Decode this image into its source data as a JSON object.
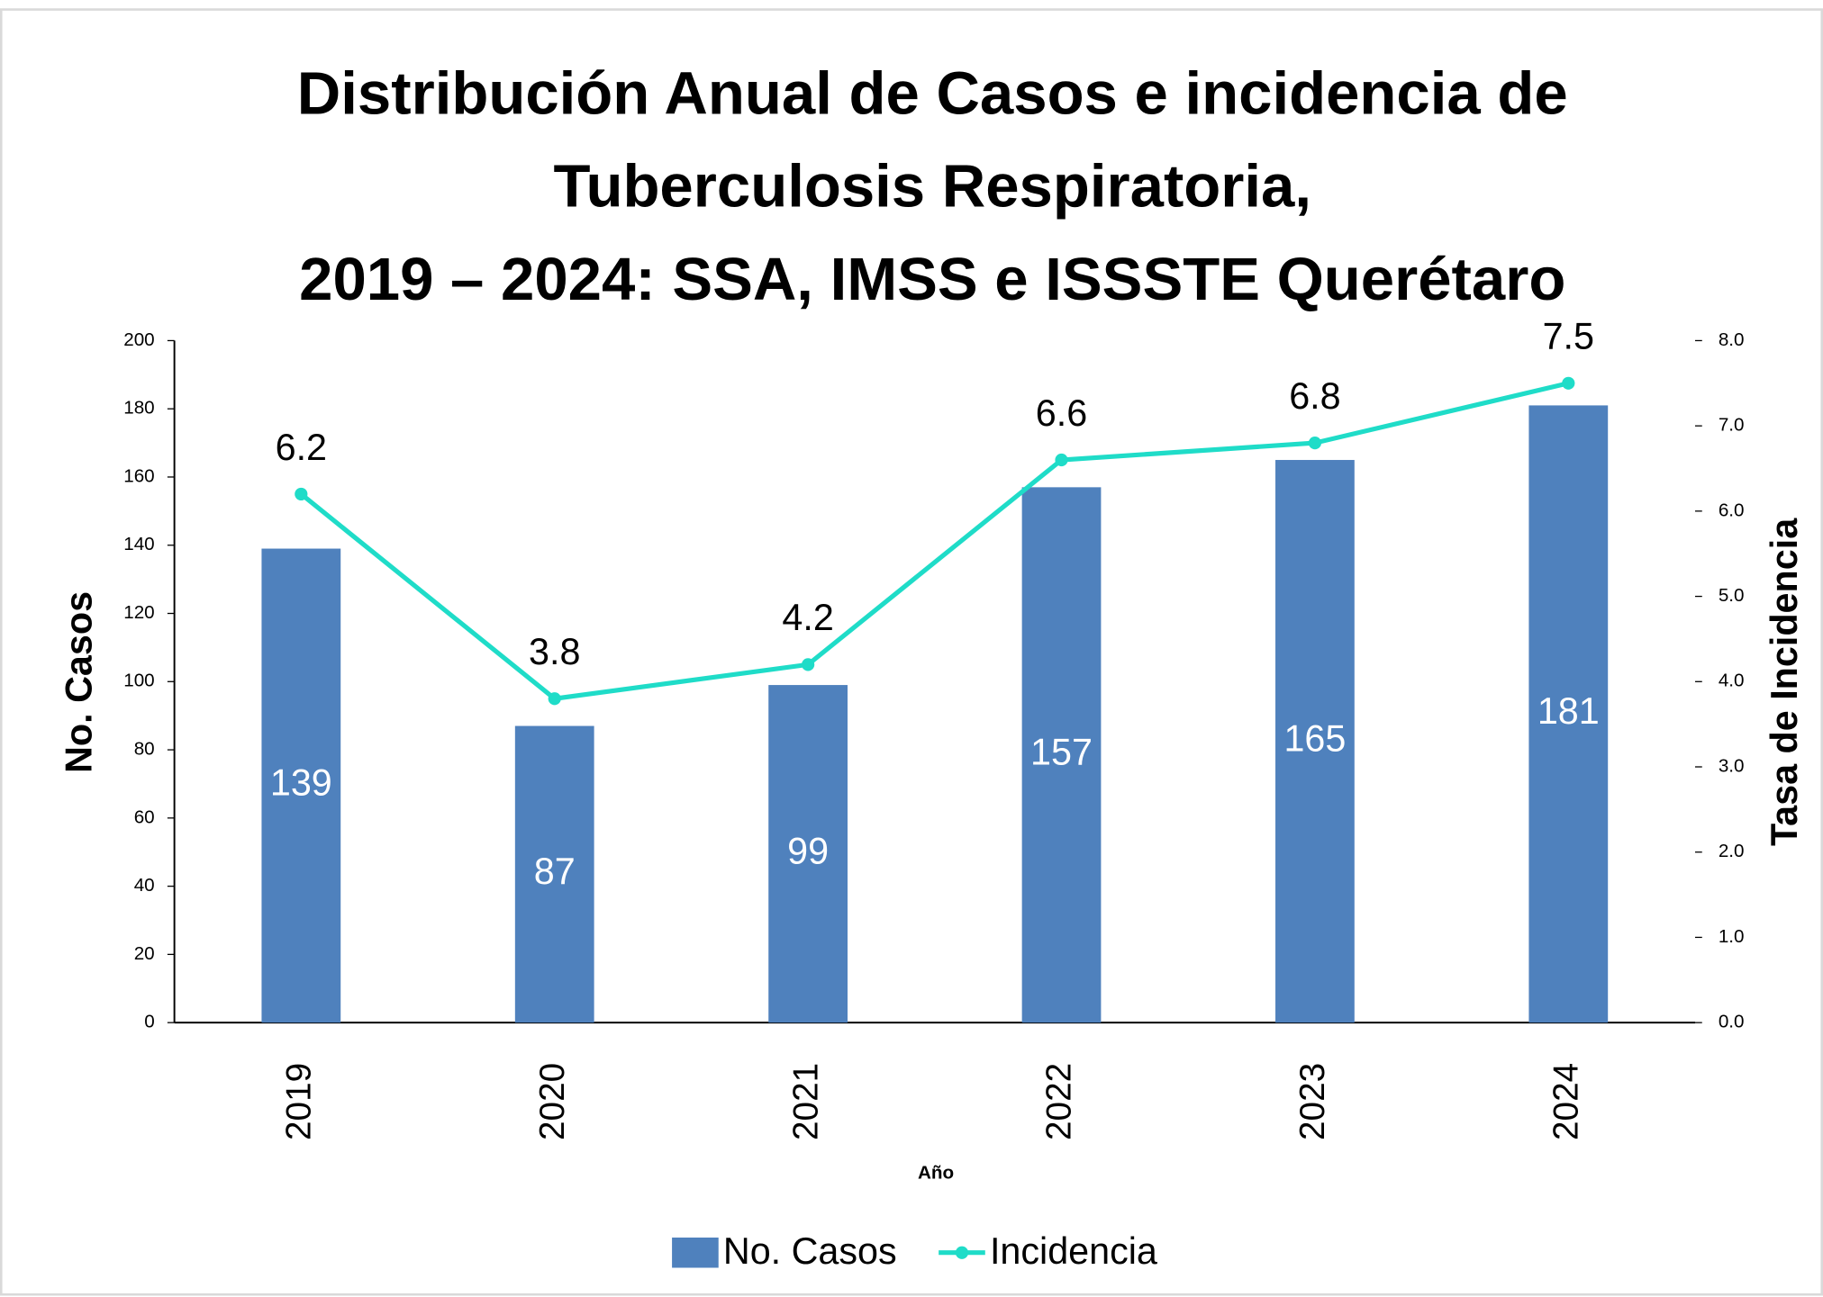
{
  "chart_data": {
    "type": "bar_line",
    "title": [
      "Distribución Anual de Casos e incidencia de",
      "Tuberculosis Respiratoria,",
      "2019 – 2024: SSA, IMSS e ISSSTE Querétaro"
    ],
    "xlabel": "Año",
    "ylabel": "No. Casos",
    "y2label": "Tasa de Incidencia",
    "categories": [
      "2019",
      "2020",
      "2021",
      "2022",
      "2023",
      "2024"
    ],
    "series": [
      {
        "name": "No. Casos",
        "type": "bar",
        "color": "#4f81bd",
        "values": [
          139,
          87,
          99,
          157,
          165,
          181
        ]
      },
      {
        "name": "Incidencia",
        "type": "line",
        "axis": "y2",
        "color": "#1fdcc8",
        "values": [
          6.2,
          3.8,
          4.2,
          6.6,
          6.8,
          7.5
        ]
      }
    ],
    "ylim": [
      0,
      200
    ],
    "yticks": [
      0,
      20,
      40,
      60,
      80,
      100,
      120,
      140,
      160,
      180,
      200
    ],
    "y2lim": [
      0,
      8
    ],
    "y2ticks": [
      {
        "value": 0,
        "label": "0.0"
      },
      {
        "value": 1,
        "label": "1.0"
      },
      {
        "value": 2,
        "label": "2.0"
      },
      {
        "value": 3,
        "label": "3.0"
      },
      {
        "value": 4,
        "label": "4.0"
      },
      {
        "value": 5,
        "label": "5.0"
      },
      {
        "value": 6,
        "label": "6.0"
      },
      {
        "value": 7,
        "label": "7.0"
      },
      {
        "value": 8,
        "label": "8.0"
      }
    ],
    "legend": "bottom"
  }
}
